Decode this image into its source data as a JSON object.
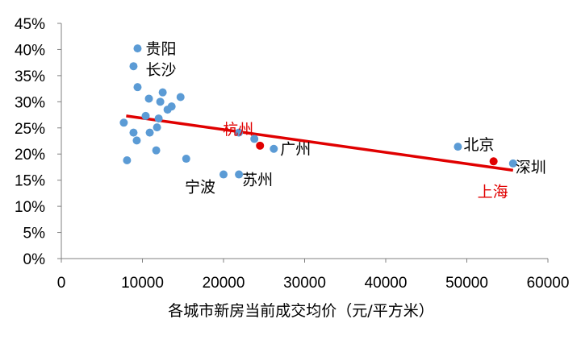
{
  "chart_data": {
    "type": "scatter",
    "xlabel": "各城市新房当前成交均价（元/平方米）",
    "ylabel": "",
    "xlim": [
      0,
      60000
    ],
    "ylim": [
      0,
      0.45
    ],
    "x_ticks": [
      0,
      10000,
      20000,
      30000,
      40000,
      50000,
      60000
    ],
    "x_tick_labels": [
      "0",
      "10000",
      "20000",
      "30000",
      "40000",
      "50000",
      "60000"
    ],
    "y_ticks": [
      0,
      0.05,
      0.1,
      0.15,
      0.2,
      0.25,
      0.3,
      0.35,
      0.4,
      0.45
    ],
    "y_tick_labels": [
      "0%",
      "5%",
      "10%",
      "15%",
      "20%",
      "25%",
      "30%",
      "35%",
      "40%",
      "45%"
    ],
    "grid": false,
    "colors": {
      "points": "#5b9bd5",
      "highlight": "#e00000",
      "trend": "#e00000",
      "axis": "#808080"
    },
    "series": [
      {
        "points": [
          {
            "x": 9400,
            "y": 0.402,
            "label": "贵阳"
          },
          {
            "x": 8900,
            "y": 0.368,
            "label": "长沙"
          },
          {
            "x": 9400,
            "y": 0.328
          },
          {
            "x": 12500,
            "y": 0.318
          },
          {
            "x": 14700,
            "y": 0.309
          },
          {
            "x": 10800,
            "y": 0.306
          },
          {
            "x": 12200,
            "y": 0.3
          },
          {
            "x": 13600,
            "y": 0.291
          },
          {
            "x": 13100,
            "y": 0.285
          },
          {
            "x": 10400,
            "y": 0.273
          },
          {
            "x": 12000,
            "y": 0.268
          },
          {
            "x": 7700,
            "y": 0.26
          },
          {
            "x": 11800,
            "y": 0.251
          },
          {
            "x": 8900,
            "y": 0.241
          },
          {
            "x": 10900,
            "y": 0.241
          },
          {
            "x": 21900,
            "y": 0.241
          },
          {
            "x": 9300,
            "y": 0.226
          },
          {
            "x": 23800,
            "y": 0.229
          },
          {
            "x": 26200,
            "y": 0.21,
            "label": "广州"
          },
          {
            "x": 11700,
            "y": 0.207
          },
          {
            "x": 15400,
            "y": 0.191
          },
          {
            "x": 8100,
            "y": 0.188
          },
          {
            "x": 20000,
            "y": 0.161,
            "label": "宁波"
          },
          {
            "x": 21900,
            "y": 0.161,
            "label": "苏州"
          },
          {
            "x": 48900,
            "y": 0.214,
            "label": "北京"
          },
          {
            "x": 55700,
            "y": 0.182,
            "label": "深圳"
          }
        ]
      },
      {
        "points": [
          {
            "x": 24500,
            "y": 0.216,
            "label": "杭州"
          },
          {
            "x": 53300,
            "y": 0.186,
            "label": "上海"
          }
        ]
      }
    ],
    "trendline": {
      "x": [
        8000,
        55700
      ],
      "y": [
        0.273,
        0.169
      ]
    }
  }
}
